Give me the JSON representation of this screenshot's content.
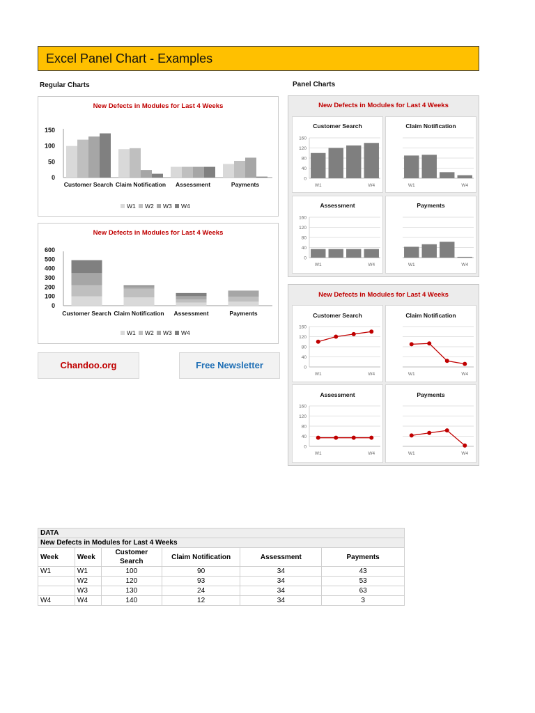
{
  "header": {
    "title": "Excel Panel Chart - Examples",
    "color": "#ffc000"
  },
  "sections": {
    "regular": "Regular Charts",
    "panel": "Panel Charts"
  },
  "chart_title": "New Defects in Modules for Last 4 Weeks",
  "modules": [
    "Customer Search",
    "Claim Notification",
    "Assessment",
    "Payments"
  ],
  "weeks": [
    "W1",
    "W2",
    "W3",
    "W4"
  ],
  "legend": [
    "W1",
    "W2",
    "W3",
    "W4"
  ],
  "week_colors": [
    "#d9d9d9",
    "#bfbfbf",
    "#a6a6a6",
    "#808080"
  ],
  "panel_axis": {
    "ticks": [
      "160",
      "120",
      "80",
      "40",
      "0"
    ],
    "first": "W1",
    "last": "W4"
  },
  "clustered_axis": {
    "ticks": [
      "150",
      "100",
      "50",
      "0"
    ]
  },
  "stacked_axis": {
    "ticks": [
      "600",
      "500",
      "400",
      "300",
      "200",
      "100",
      "0"
    ]
  },
  "buttons": {
    "chandoo": {
      "label": "Chandoo.org",
      "color": "#c00000"
    },
    "newsletter": {
      "label": "Free Newsletter",
      "color": "#1f6fb5"
    }
  },
  "table": {
    "band1": "DATA",
    "band2": "New Defects in Modules for Last 4 Weeks",
    "headers": [
      "Week",
      "Week",
      "Customer Search",
      "Claim Notification",
      "Assessment",
      "Payments"
    ],
    "rows": [
      [
        "W1",
        "W1",
        "100",
        "90",
        "34",
        "43"
      ],
      [
        "",
        "W2",
        "120",
        "93",
        "34",
        "53"
      ],
      [
        "",
        "W3",
        "130",
        "24",
        "34",
        "63"
      ],
      [
        "W4",
        "W4",
        "140",
        "12",
        "34",
        "3"
      ]
    ]
  },
  "chart_data": [
    {
      "type": "bar",
      "title": "New Defects in Modules for Last 4 Weeks",
      "subtitle": "Regular Charts - clustered",
      "categories": [
        "Customer Search",
        "Claim Notification",
        "Assessment",
        "Payments"
      ],
      "series": [
        {
          "name": "W1",
          "values": [
            100,
            90,
            34,
            43
          ]
        },
        {
          "name": "W2",
          "values": [
            120,
            93,
            34,
            53
          ]
        },
        {
          "name": "W3",
          "values": [
            130,
            24,
            34,
            63
          ]
        },
        {
          "name": "W4",
          "values": [
            140,
            12,
            34,
            3
          ]
        }
      ],
      "ylim": [
        0,
        150
      ],
      "legend_position": "bottom",
      "grid": false
    },
    {
      "type": "bar",
      "stacked": true,
      "title": "New Defects in Modules for Last 4 Weeks",
      "subtitle": "Regular Charts - stacked",
      "categories": [
        "Customer Search",
        "Claim Notification",
        "Assessment",
        "Payments"
      ],
      "series": [
        {
          "name": "W1",
          "values": [
            100,
            90,
            34,
            43
          ]
        },
        {
          "name": "W2",
          "values": [
            120,
            93,
            34,
            53
          ]
        },
        {
          "name": "W3",
          "values": [
            130,
            24,
            34,
            63
          ]
        },
        {
          "name": "W4",
          "values": [
            140,
            12,
            34,
            3
          ]
        }
      ],
      "ylim": [
        0,
        600
      ],
      "legend_position": "bottom",
      "grid": false
    },
    {
      "type": "bar",
      "title": "New Defects in Modules for Last 4 Weeks",
      "subtitle": "Panel Charts - column panels",
      "panels": [
        {
          "name": "Customer Search",
          "x": [
            "W1",
            "W2",
            "W3",
            "W4"
          ],
          "values": [
            100,
            120,
            130,
            140
          ]
        },
        {
          "name": "Claim Notification",
          "x": [
            "W1",
            "W2",
            "W3",
            "W4"
          ],
          "values": [
            90,
            93,
            24,
            12
          ]
        },
        {
          "name": "Assessment",
          "x": [
            "W1",
            "W2",
            "W3",
            "W4"
          ],
          "values": [
            34,
            34,
            34,
            34
          ]
        },
        {
          "name": "Payments",
          "x": [
            "W1",
            "W2",
            "W3",
            "W4"
          ],
          "values": [
            43,
            53,
            63,
            3
          ]
        }
      ],
      "ylim": [
        0,
        160
      ],
      "grid": true
    },
    {
      "type": "line",
      "title": "New Defects in Modules for Last 4 Weeks",
      "subtitle": "Panel Charts - line panels",
      "panels": [
        {
          "name": "Customer Search",
          "x": [
            "W1",
            "W2",
            "W3",
            "W4"
          ],
          "values": [
            100,
            120,
            130,
            140
          ]
        },
        {
          "name": "Claim Notification",
          "x": [
            "W1",
            "W2",
            "W3",
            "W4"
          ],
          "values": [
            90,
            93,
            24,
            12
          ]
        },
        {
          "name": "Assessment",
          "x": [
            "W1",
            "W2",
            "W3",
            "W4"
          ],
          "values": [
            34,
            34,
            34,
            34
          ]
        },
        {
          "name": "Payments",
          "x": [
            "W1",
            "W2",
            "W3",
            "W4"
          ],
          "values": [
            43,
            53,
            63,
            3
          ]
        }
      ],
      "ylim": [
        0,
        160
      ],
      "grid": true,
      "line_color": "#c00000"
    }
  ]
}
